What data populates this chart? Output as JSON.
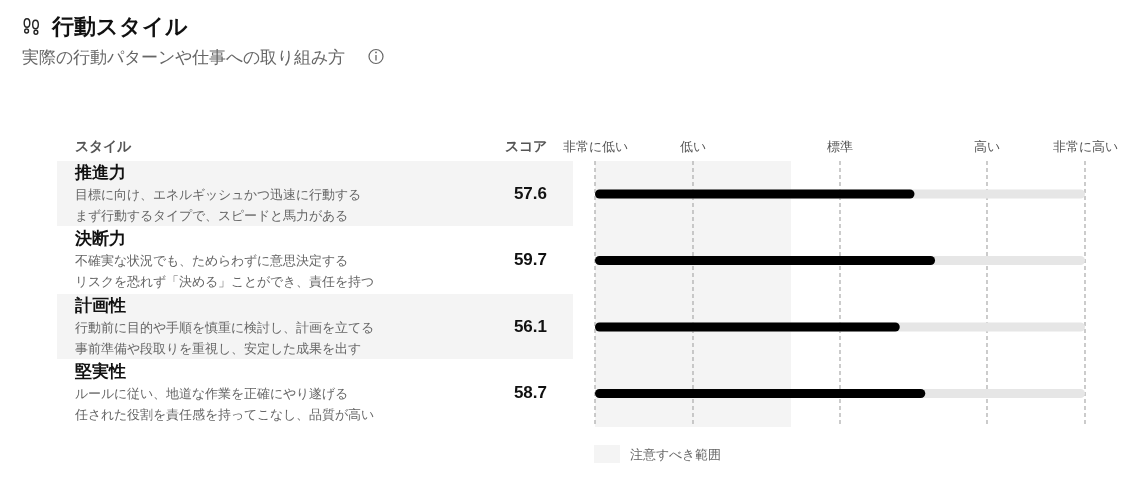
{
  "chart_data": {
    "type": "bar",
    "orientation": "horizontal",
    "title": "行動スタイル",
    "subtitle": "実際の行動パターンや仕事への取り組み方",
    "ylabel": "スタイル",
    "categories": [
      "推進力",
      "決断力",
      "計画性",
      "堅実性"
    ],
    "values": [
      57.6,
      59.7,
      56.1,
      58.7
    ],
    "color": "#000000",
    "data_labels": true,
    "xlim": [
      25,
      75
    ],
    "legend": "bottom left",
    "ref_lines": [
      {
        "axis": "x",
        "value": 25,
        "label": "非常に低い",
        "color": "#aaaaaa",
        "line_style": "dashed"
      },
      {
        "axis": "x",
        "value": 35,
        "label": "低い",
        "color": "#aaaaaa",
        "line_style": "dashed"
      },
      {
        "axis": "x",
        "value": 50,
        "label": "標準",
        "color": "#aaaaaa",
        "line_style": "dashed"
      },
      {
        "axis": "x",
        "value": 65,
        "label": "高い",
        "color": "#aaaaaa",
        "line_style": "dashed"
      },
      {
        "axis": "x",
        "value": 75,
        "label": "非常に高い",
        "color": "#aaaaaa",
        "line_style": "dashed"
      }
    ],
    "bands": [
      {
        "axis": "x",
        "from": 25,
        "to": 45,
        "label": "注意すべき範囲",
        "color": "#f4f4f4"
      }
    ],
    "annotations": [
      "スコア",
      "目標に向け、エネルギッシュかつ迅速に行動する",
      "まず行動するタイプで、スピードと馬力がある",
      "不確実な状況でも、ためらわずに意思決定する",
      "リスクを恐れず「決める」ことができ、責任を持つ",
      "行動前に目的や手順を慎重に検討し、計画を立てる",
      "事前準備や段取りを重視し、安定した成果を出す",
      "ルールに従い、地道な作業を正確にやり遂げる",
      "任された役割を責任感を持ってこなし、品質が高い"
    ]
  }
}
